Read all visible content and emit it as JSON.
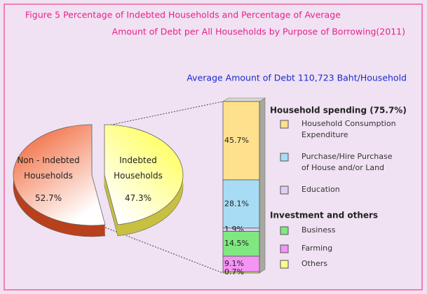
{
  "chart_data": [
    {
      "type": "pie",
      "title": [
        "Figure 5   Percentage of Indebted Households and Percentage of Average",
        "Amount of Debt per All Households by Purpose of Borrowing(2011)"
      ],
      "subtitle": "Average Amount of Debt  110,723  Baht/Household",
      "categories": [
        "Non - Indebted Households",
        "Indebted Households"
      ],
      "values": [
        52.7,
        47.3
      ],
      "value_labels": [
        "52.7%",
        "47.3%"
      ],
      "colors": [
        "#f46a3c",
        "#ffff66"
      ]
    },
    {
      "type": "bar",
      "stacked": true,
      "groups": [
        "Household spending (75.7%)",
        "Investment and others"
      ],
      "series": [
        {
          "name": "Household Consumption Expenditure",
          "color": "#ffe08c",
          "values": [
            45.7
          ],
          "value_labels": [
            "45.7%"
          ]
        },
        {
          "name": "Purchase/Hire Purchase of House and/or Land",
          "color": "#a8dcf4",
          "values": [
            28.1
          ],
          "value_labels": [
            "28.1%"
          ]
        },
        {
          "name": "Education",
          "color": "#ddd0f4",
          "values": [
            1.9
          ],
          "value_labels": [
            "1.9%"
          ]
        },
        {
          "name": "Business",
          "color": "#80e880",
          "values": [
            14.5
          ],
          "value_labels": [
            "14.5%"
          ]
        },
        {
          "name": "Farming",
          "color": "#f494f4",
          "values": [
            9.1
          ],
          "value_labels": [
            "9.1%"
          ]
        },
        {
          "name": "Others",
          "color": "#ffff88",
          "values": [
            0.7
          ],
          "value_labels": [
            "0.7%"
          ]
        }
      ]
    }
  ]
}
